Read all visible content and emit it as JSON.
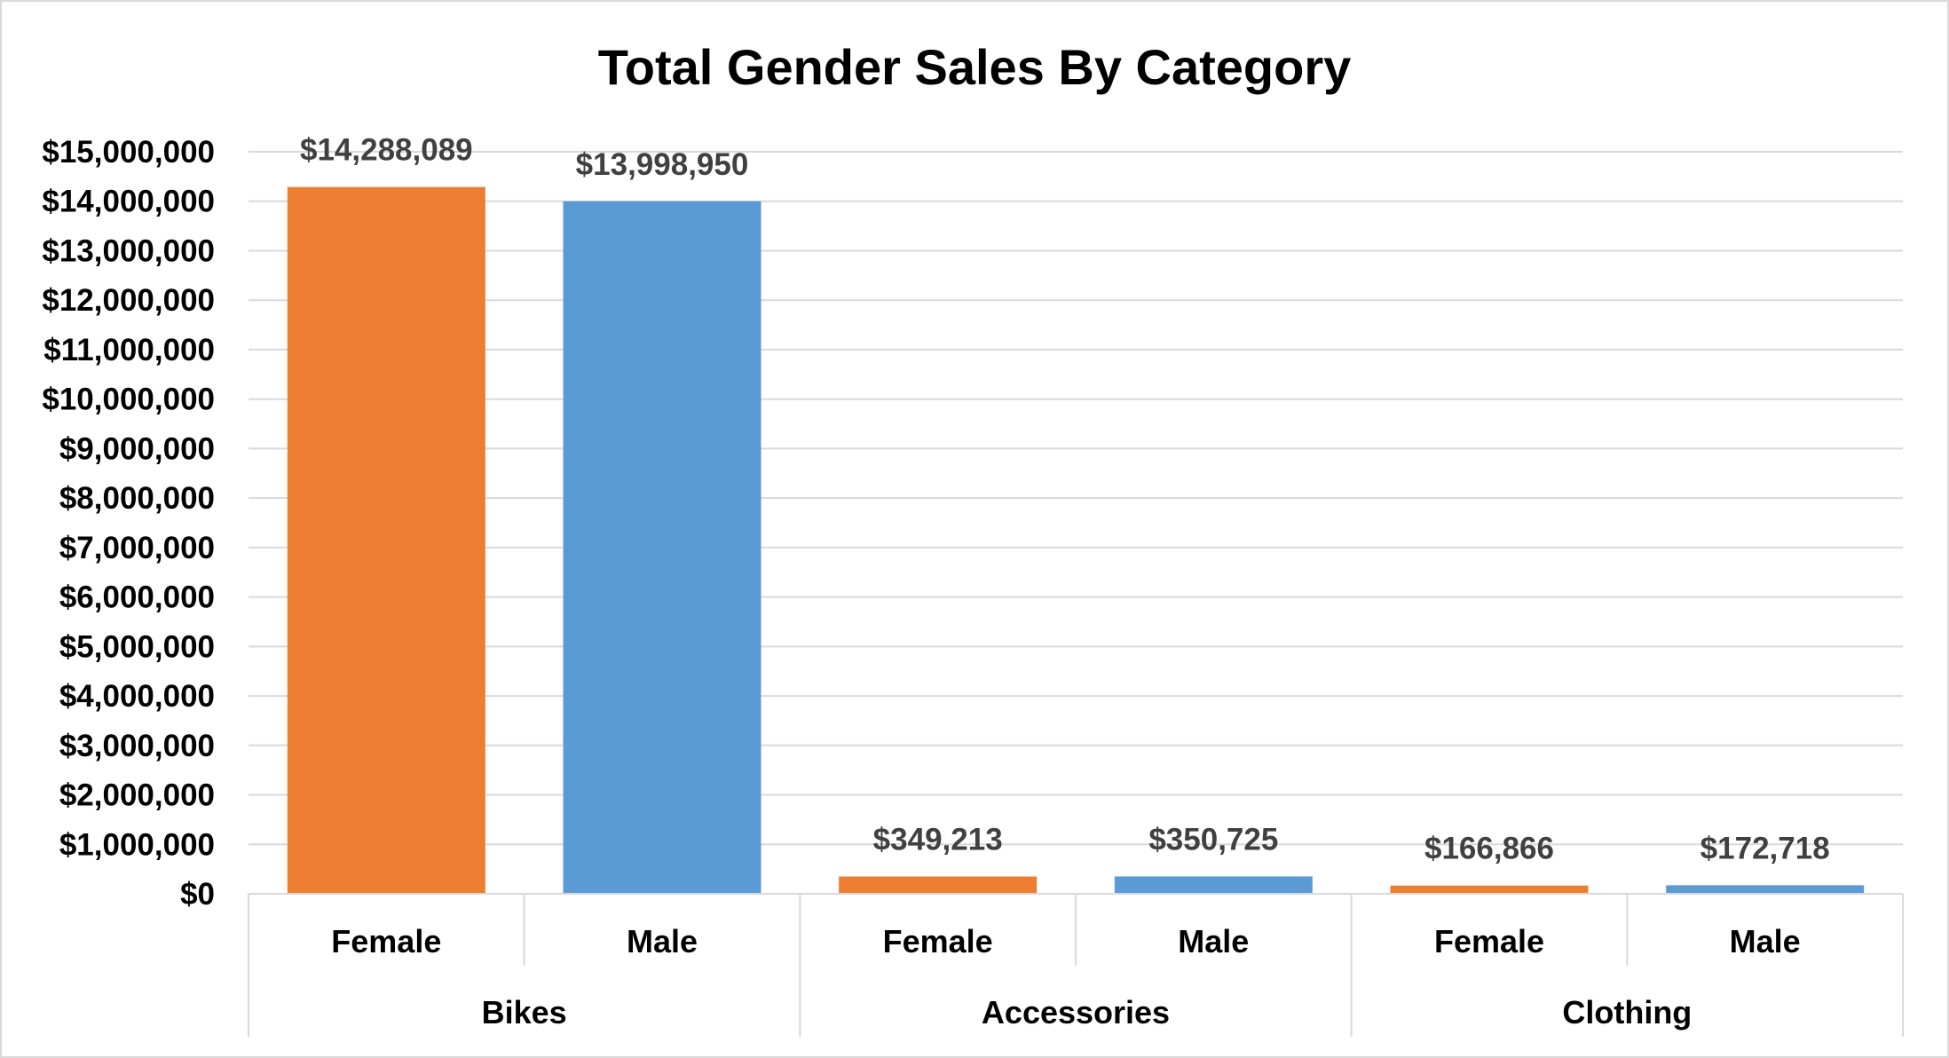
{
  "chart_data": {
    "type": "bar",
    "title": "Total Gender Sales By Category",
    "xlabel": "",
    "ylabel": "",
    "ylim": [
      0,
      15000000
    ],
    "y_step": 1000000,
    "y_ticks": [
      "$0",
      "$1,000,000",
      "$2,000,000",
      "$3,000,000",
      "$4,000,000",
      "$5,000,000",
      "$6,000,000",
      "$7,000,000",
      "$8,000,000",
      "$9,000,000",
      "$10,000,000",
      "$11,000,000",
      "$12,000,000",
      "$13,000,000",
      "$14,000,000",
      "$15,000,000"
    ],
    "grid": true,
    "legend": "none",
    "groups": [
      {
        "name": "Bikes",
        "bars": [
          {
            "label": "Female",
            "value": 14288089,
            "display": "$14,288,089",
            "color": "#ed7d31"
          },
          {
            "label": "Male",
            "value": 13998950,
            "display": "$13,998,950",
            "color": "#5b9bd5"
          }
        ]
      },
      {
        "name": "Accessories",
        "bars": [
          {
            "label": "Female",
            "value": 349213,
            "display": "$349,213",
            "color": "#ed7d31"
          },
          {
            "label": "Male",
            "value": 350725,
            "display": "$350,725",
            "color": "#5b9bd5"
          }
        ]
      },
      {
        "name": "Clothing",
        "bars": [
          {
            "label": "Female",
            "value": 166866,
            "display": "$166,866",
            "color": "#ed7d31"
          },
          {
            "label": "Male",
            "value": 172718,
            "display": "$172,718",
            "color": "#5b9bd5"
          }
        ]
      }
    ]
  }
}
